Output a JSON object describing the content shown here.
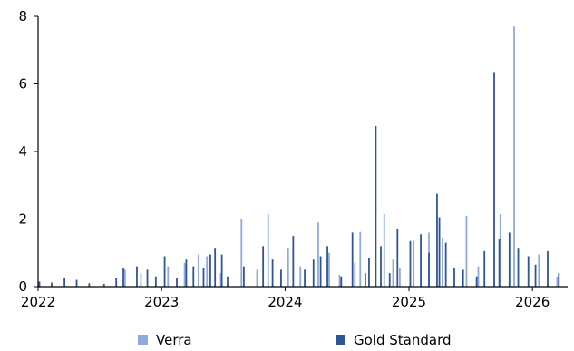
{
  "chart_data": {
    "type": "bar",
    "x_axis": {
      "type": "date",
      "ticks": [
        "2022",
        "2023",
        "2024",
        "2025",
        "2026"
      ],
      "range": [
        "2022-01-01",
        "2026-04-15"
      ]
    },
    "y_axis": {
      "ticks": [
        "0",
        "2",
        "4",
        "6",
        "8"
      ],
      "ylim": [
        0,
        8
      ]
    },
    "grid": false,
    "legend": {
      "position": "bottom"
    },
    "series": [
      {
        "name": "Verra",
        "color": "#8faadc",
        "points": [
          [
            "2022-09-15",
            0.5
          ],
          [
            "2022-11-01",
            0.4
          ],
          [
            "2023-01-20",
            0.6
          ],
          [
            "2023-03-10",
            0.7
          ],
          [
            "2023-04-20",
            0.95
          ],
          [
            "2023-05-15",
            0.9
          ],
          [
            "2023-06-25",
            0.4
          ],
          [
            "2023-08-25",
            2.0
          ],
          [
            "2023-10-10",
            0.5
          ],
          [
            "2023-11-12",
            2.15
          ],
          [
            "2024-01-10",
            1.15
          ],
          [
            "2024-02-15",
            0.6
          ],
          [
            "2024-04-08",
            1.9
          ],
          [
            "2024-05-10",
            1.0
          ],
          [
            "2024-06-10",
            0.35
          ],
          [
            "2024-07-25",
            0.7
          ],
          [
            "2024-08-10",
            1.62
          ],
          [
            "2024-10-20",
            2.15
          ],
          [
            "2024-11-15",
            0.8
          ],
          [
            "2024-12-05",
            0.55
          ],
          [
            "2025-01-15",
            1.35
          ],
          [
            "2025-03-01",
            1.6
          ],
          [
            "2025-04-10",
            1.45
          ],
          [
            "2025-06-20",
            2.1
          ],
          [
            "2025-07-25",
            0.6
          ],
          [
            "2025-09-28",
            2.15
          ],
          [
            "2025-11-08",
            7.7
          ],
          [
            "2026-01-20",
            0.95
          ],
          [
            "2026-03-15",
            0.3
          ]
        ]
      },
      {
        "name": "Gold Standard",
        "color": "#2f5597",
        "points": [
          [
            "2022-01-05",
            0.15
          ],
          [
            "2022-02-10",
            0.12
          ],
          [
            "2022-03-20",
            0.25
          ],
          [
            "2022-04-25",
            0.2
          ],
          [
            "2022-06-01",
            0.1
          ],
          [
            "2022-07-15",
            0.08
          ],
          [
            "2022-08-20",
            0.25
          ],
          [
            "2022-09-10",
            0.55
          ],
          [
            "2022-10-20",
            0.6
          ],
          [
            "2022-11-20",
            0.5
          ],
          [
            "2022-12-15",
            0.3
          ],
          [
            "2023-01-10",
            0.9
          ],
          [
            "2023-02-15",
            0.25
          ],
          [
            "2023-03-15",
            0.8
          ],
          [
            "2023-04-05",
            0.6
          ],
          [
            "2023-05-05",
            0.55
          ],
          [
            "2023-05-25",
            0.95
          ],
          [
            "2023-06-08",
            1.15
          ],
          [
            "2023-06-28",
            0.95
          ],
          [
            "2023-07-15",
            0.3
          ],
          [
            "2023-09-01",
            0.6
          ],
          [
            "2023-10-28",
            1.2
          ],
          [
            "2023-11-25",
            0.8
          ],
          [
            "2023-12-20",
            0.5
          ],
          [
            "2024-01-25",
            1.5
          ],
          [
            "2024-02-28",
            0.5
          ],
          [
            "2024-03-25",
            0.8
          ],
          [
            "2024-04-15",
            0.9
          ],
          [
            "2024-05-05",
            1.2
          ],
          [
            "2024-06-15",
            0.3
          ],
          [
            "2024-07-18",
            1.6
          ],
          [
            "2024-08-25",
            0.4
          ],
          [
            "2024-09-05",
            0.85
          ],
          [
            "2024-09-25",
            4.75
          ],
          [
            "2024-10-10",
            1.2
          ],
          [
            "2024-11-05",
            0.4
          ],
          [
            "2024-11-28",
            1.7
          ],
          [
            "2025-01-05",
            1.35
          ],
          [
            "2025-02-05",
            1.55
          ],
          [
            "2025-03-01",
            1.0
          ],
          [
            "2025-03-25",
            2.75
          ],
          [
            "2025-04-01",
            2.05
          ],
          [
            "2025-04-20",
            1.3
          ],
          [
            "2025-05-15",
            0.55
          ],
          [
            "2025-06-10",
            0.5
          ],
          [
            "2025-07-20",
            0.3
          ],
          [
            "2025-08-12",
            1.05
          ],
          [
            "2025-09-10",
            6.35
          ],
          [
            "2025-09-25",
            1.4
          ],
          [
            "2025-10-25",
            1.6
          ],
          [
            "2025-11-20",
            1.15
          ],
          [
            "2025-12-20",
            0.9
          ],
          [
            "2026-01-10",
            0.65
          ],
          [
            "2026-02-15",
            1.05
          ],
          [
            "2026-03-20",
            0.4
          ]
        ]
      }
    ]
  }
}
